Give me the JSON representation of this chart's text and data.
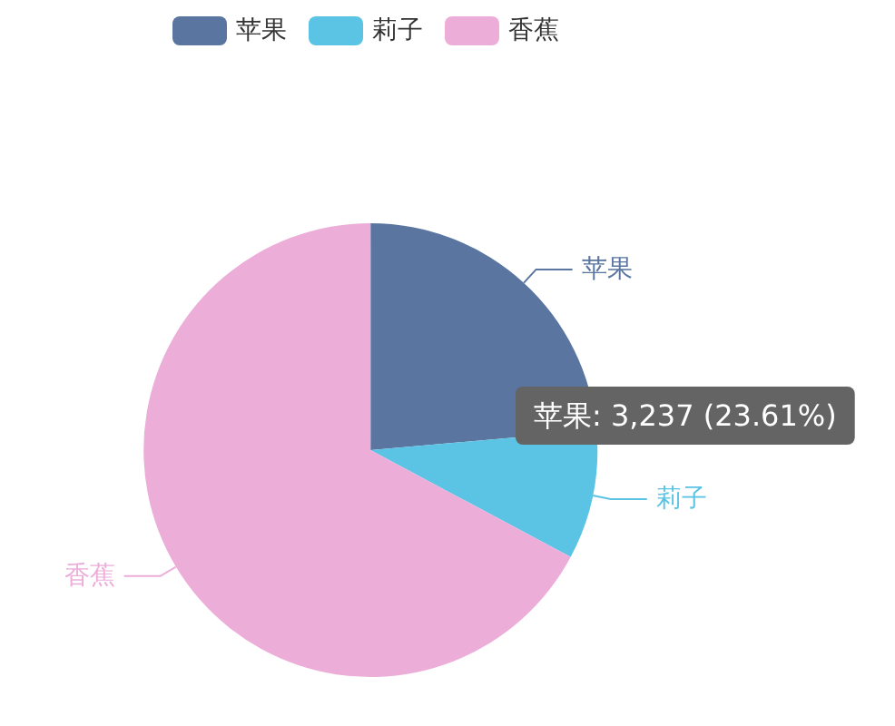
{
  "chart_data": {
    "type": "pie",
    "categories": [
      "苹果",
      "莉子",
      "香蕉"
    ],
    "values": [
      23.61,
      9.2,
      67.19
    ],
    "colors": [
      "#5a75a0",
      "#5bc4e5",
      "#ecaed9"
    ],
    "legend": "top",
    "annotations": [
      "苹果: 3,237 (23.61%)"
    ]
  }
}
